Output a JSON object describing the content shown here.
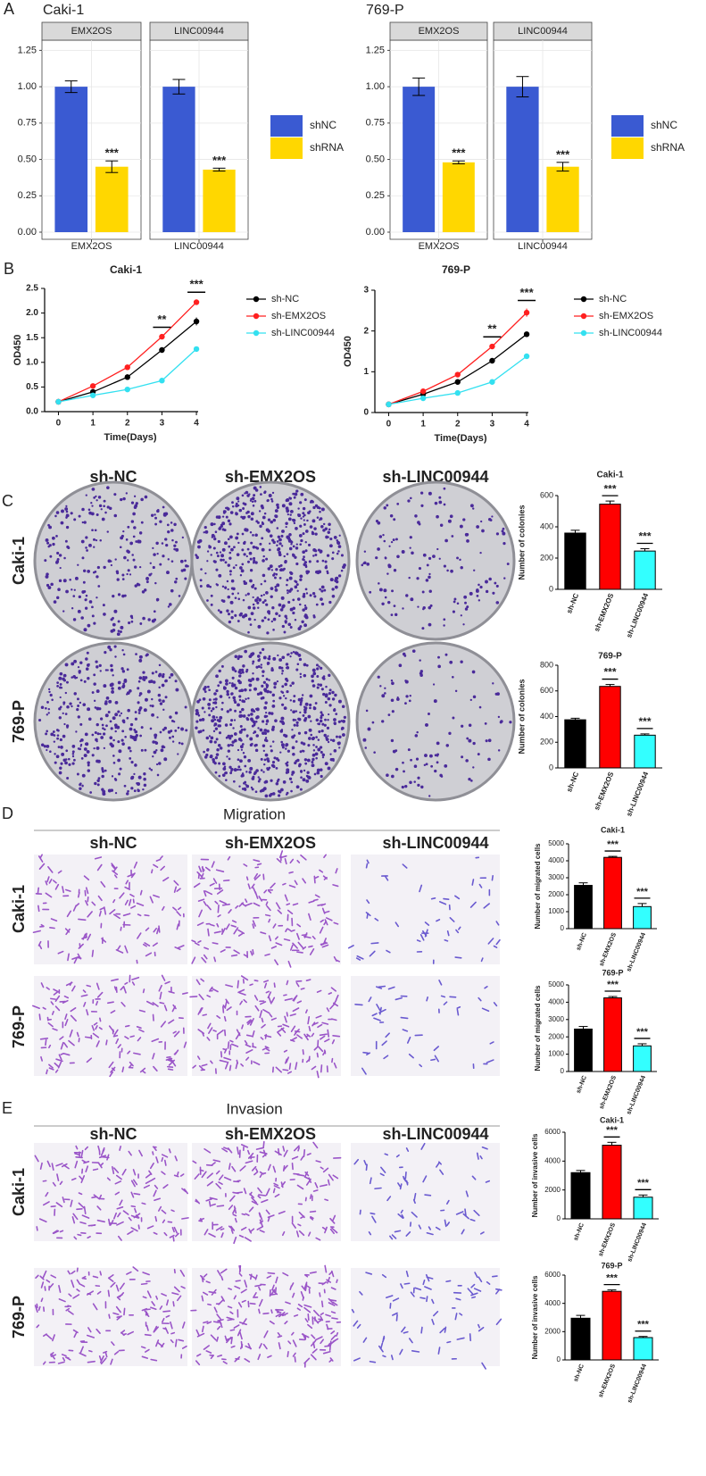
{
  "panel_labels": [
    "A",
    "B",
    "C",
    "D",
    "E"
  ],
  "chart_data": [
    {
      "type": "bar",
      "title": "Caki-1",
      "series": [
        {
          "name": "shNC",
          "color": "#3a5ad2"
        },
        {
          "name": "shRNA",
          "color": "#ffd700"
        }
      ],
      "ylim": [
        0,
        1.32
      ],
      "yticks": [
        {
          "value": 0,
          "label": "0.00"
        },
        0.25,
        {
          "value": 0.5,
          "label": "0.50"
        },
        0.75,
        {
          "value": 1,
          "label": "1.00"
        },
        1.25
      ],
      "grid": true,
      "facets": [
        {
          "strip": "EMX2OS",
          "category": "EMX2OS",
          "values": [
            1.0,
            0.45
          ],
          "errors": [
            0.04,
            0.04
          ],
          "sig": "***"
        },
        {
          "strip": "LINC00944",
          "category": "LINC00944",
          "values": [
            1.0,
            0.43
          ],
          "errors": [
            0.05,
            0.01
          ],
          "sig": "***"
        }
      ]
    },
    {
      "type": "bar",
      "title": "769-P",
      "series": [
        {
          "name": "shNC",
          "color": "#3a5ad2"
        },
        {
          "name": "shRNA",
          "color": "#ffd700"
        }
      ],
      "ylim": [
        0,
        1.32
      ],
      "yticks": [
        {
          "value": 0,
          "label": "0.00"
        },
        0.25,
        {
          "value": 0.5,
          "label": "0.50"
        },
        0.75,
        {
          "value": 1,
          "label": "1.00"
        },
        1.25
      ],
      "grid": true,
      "facets": [
        {
          "strip": "EMX2OS",
          "category": "EMX2OS",
          "values": [
            1.0,
            0.48
          ],
          "errors": [
            0.06,
            0.01
          ],
          "sig": "***"
        },
        {
          "strip": "LINC00944",
          "category": "LINC00944",
          "values": [
            1.0,
            0.45
          ],
          "errors": [
            0.07,
            0.03
          ],
          "sig": "***"
        }
      ]
    },
    {
      "type": "line",
      "title": "Caki-1",
      "xlabel": "Time(Days)",
      "ylabel": "OD450",
      "x": [
        0,
        1,
        2,
        3,
        4
      ],
      "xlim": [
        -0.4,
        4.05
      ],
      "xticks": [
        0,
        1,
        2,
        3,
        4
      ],
      "ylim": [
        0,
        2.5
      ],
      "yticks": [
        {
          "value": 0,
          "label": "0.0"
        },
        0.5,
        {
          "value": 1,
          "label": "1.0"
        },
        1.5,
        {
          "value": 2,
          "label": "2.0"
        },
        2.5
      ],
      "series": [
        {
          "name": "sh-NC",
          "color": "#000000",
          "values": [
            0.2,
            0.4,
            0.7,
            1.25,
            1.83
          ],
          "errors": [
            0.01,
            0.02,
            0.03,
            0.04,
            0.08
          ]
        },
        {
          "name": "sh-EMX2OS",
          "color": "#ff2020",
          "values": [
            0.2,
            0.52,
            0.9,
            1.52,
            2.22
          ],
          "errors": [
            0.01,
            0.02,
            0.03,
            0.03,
            0.04
          ]
        },
        {
          "name": "sh-LINC00944",
          "color": "#33e0f0",
          "values": [
            0.2,
            0.33,
            0.45,
            0.63,
            1.27
          ],
          "errors": [
            0.01,
            0.02,
            0.02,
            0.03,
            0.04
          ]
        }
      ],
      "annotations": [
        {
          "x": 3,
          "label": "**"
        },
        {
          "x": 4,
          "label": "***"
        }
      ]
    },
    {
      "type": "line",
      "title": "769-P",
      "xlabel": "Time(Days)",
      "ylabel": "OD450",
      "x": [
        0,
        1,
        2,
        3,
        4
      ],
      "xlim": [
        -0.4,
        4.05
      ],
      "xticks": [
        0,
        1,
        2,
        3,
        4
      ],
      "ylim": [
        0,
        3
      ],
      "yticks": [
        0,
        1,
        2,
        3
      ],
      "series": [
        {
          "name": "sh-NC",
          "color": "#000000",
          "values": [
            0.2,
            0.45,
            0.75,
            1.27,
            1.92
          ],
          "errors": [
            0.01,
            0.02,
            0.03,
            0.03,
            0.05
          ]
        },
        {
          "name": "sh-EMX2OS",
          "color": "#ff2020",
          "values": [
            0.2,
            0.52,
            0.93,
            1.62,
            2.45
          ],
          "errors": [
            0.01,
            0.02,
            0.03,
            0.04,
            0.1
          ]
        },
        {
          "name": "sh-LINC00944",
          "color": "#33e0f0",
          "values": [
            0.2,
            0.35,
            0.48,
            0.75,
            1.38
          ],
          "errors": [
            0.01,
            0.02,
            0.02,
            0.03,
            0.06
          ]
        }
      ],
      "annotations": [
        {
          "x": 3,
          "label": "**"
        },
        {
          "x": 4,
          "label": "***"
        }
      ]
    },
    {
      "type": "bar",
      "title": "Caki-1",
      "ylabel": "Number of colonies",
      "categories": [
        "sh-NC",
        "sh-EMX2OS",
        "sh-LINC00944"
      ],
      "values": [
        360,
        545,
        245
      ],
      "errors": [
        18,
        20,
        15
      ],
      "colors": [
        "#000000",
        "#ff0000",
        "#33ffff"
      ],
      "ylim": [
        0,
        600
      ],
      "yticks": [
        0,
        200,
        400,
        600
      ],
      "annotations": [
        {
          "index": 1,
          "label": "***"
        },
        {
          "index": 2,
          "label": "***"
        }
      ]
    },
    {
      "type": "bar",
      "title": "769-P",
      "ylabel": "Number of colonies",
      "categories": [
        "sh-NC",
        "sh-EMX2OS",
        "sh-LINC00944"
      ],
      "values": [
        375,
        635,
        255
      ],
      "errors": [
        12,
        15,
        10
      ],
      "colors": [
        "#000000",
        "#ff0000",
        "#33ffff"
      ],
      "ylim": [
        0,
        800
      ],
      "yticks": [
        0,
        200,
        400,
        600,
        800
      ],
      "annotations": [
        {
          "index": 1,
          "label": "***"
        },
        {
          "index": 2,
          "label": "***"
        }
      ]
    },
    {
      "type": "bar",
      "title": "Caki-1",
      "ylabel": "Number of migrated cells",
      "categories": [
        "sh-NC",
        "sh-EMX2OS",
        "sh-LINC00944"
      ],
      "values": [
        2550,
        4200,
        1300
      ],
      "errors": [
        150,
        60,
        180
      ],
      "colors": [
        "#000000",
        "#ff0000",
        "#33ffff"
      ],
      "ylim": [
        0,
        5000
      ],
      "yticks": [
        0,
        1000,
        2000,
        3000,
        4000,
        5000
      ],
      "annotations": [
        {
          "index": 1,
          "label": "***"
        },
        {
          "index": 2,
          "label": "***"
        }
      ]
    },
    {
      "type": "bar",
      "title": "769-P",
      "ylabel": "Number of migrated cells",
      "categories": [
        "sh-NC",
        "sh-EMX2OS",
        "sh-LINC00944"
      ],
      "values": [
        2450,
        4250,
        1480
      ],
      "errors": [
        150,
        80,
        120
      ],
      "colors": [
        "#000000",
        "#ff0000",
        "#33ffff"
      ],
      "ylim": [
        0,
        5000
      ],
      "yticks": [
        0,
        1000,
        2000,
        3000,
        4000,
        5000
      ],
      "annotations": [
        {
          "index": 1,
          "label": "***"
        },
        {
          "index": 2,
          "label": "***"
        }
      ]
    },
    {
      "type": "bar",
      "title": "Caki-1",
      "ylabel": "Number of invasive cells",
      "categories": [
        "sh-NC",
        "sh-EMX2OS",
        "sh-LINC00944"
      ],
      "values": [
        3200,
        5100,
        1500
      ],
      "errors": [
        150,
        200,
        150
      ],
      "colors": [
        "#000000",
        "#ff0000",
        "#33ffff"
      ],
      "ylim": [
        0,
        6000
      ],
      "yticks": [
        0,
        2000,
        4000,
        6000
      ],
      "annotations": [
        {
          "index": 1,
          "label": "***"
        },
        {
          "index": 2,
          "label": "***"
        }
      ]
    },
    {
      "type": "bar",
      "title": "769-P",
      "ylabel": "Number of invasive cells",
      "categories": [
        "sh-NC",
        "sh-EMX2OS",
        "sh-LINC00944"
      ],
      "values": [
        2950,
        4850,
        1580
      ],
      "errors": [
        200,
        100,
        80
      ],
      "colors": [
        "#000000",
        "#ff0000",
        "#33ffff"
      ],
      "ylim": [
        0,
        6000
      ],
      "yticks": [
        0,
        2000,
        4000,
        6000
      ],
      "annotations": [
        {
          "index": 1,
          "label": "***"
        },
        {
          "index": 2,
          "label": "***"
        }
      ]
    }
  ],
  "panel_c": {
    "columns": [
      "sh-NC",
      "sh-EMX2OS",
      "sh-LINC00944"
    ],
    "rows": [
      "Caki-1",
      "769-P"
    ]
  },
  "panel_d": {
    "title": "Migration",
    "columns": [
      "sh-NC",
      "sh-EMX2OS",
      "sh-LINC00944"
    ],
    "rows": [
      "Caki-1",
      "769-P"
    ]
  },
  "panel_e": {
    "title": "Invasion",
    "columns": [
      "sh-NC",
      "sh-EMX2OS",
      "sh-LINC00944"
    ],
    "rows": [
      "Caki-1",
      "769-P"
    ]
  }
}
